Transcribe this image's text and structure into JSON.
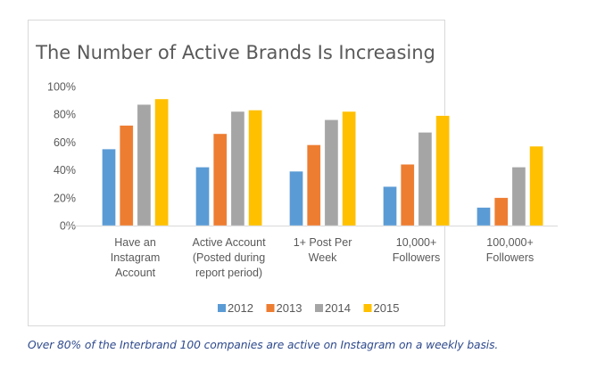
{
  "chart_data": {
    "type": "bar",
    "title": "The Number of Active Brands Is Increasing",
    "xlabel": "",
    "ylabel": "",
    "ylim": [
      0,
      100
    ],
    "yticks": [
      "0%",
      "20%",
      "40%",
      "60%",
      "80%",
      "100%"
    ],
    "ytick_values": [
      0,
      20,
      40,
      60,
      80,
      100
    ],
    "grid": false,
    "legend_position": "bottom",
    "categories": [
      [
        "Have an",
        "Instagram",
        "Account"
      ],
      [
        "Active Account",
        "(Posted during",
        "report period)"
      ],
      [
        "1+ Post Per",
        "Week"
      ],
      [
        "10,000+",
        "Followers"
      ],
      [
        "100,000+",
        "Followers"
      ]
    ],
    "series": [
      {
        "name": "2012",
        "color": "#5b9bd5",
        "values": [
          55,
          42,
          39,
          28,
          13
        ]
      },
      {
        "name": "2013",
        "color": "#ed7d31",
        "values": [
          72,
          66,
          58,
          44,
          20
        ]
      },
      {
        "name": "2014",
        "color": "#a5a5a5",
        "values": [
          87,
          82,
          76,
          67,
          42
        ]
      },
      {
        "name": "2015",
        "color": "#ffc000",
        "values": [
          91,
          83,
          82,
          79,
          57
        ]
      }
    ]
  },
  "caption": "Over 80% of the Interbrand 100 companies are active on Instagram on a weekly basis."
}
